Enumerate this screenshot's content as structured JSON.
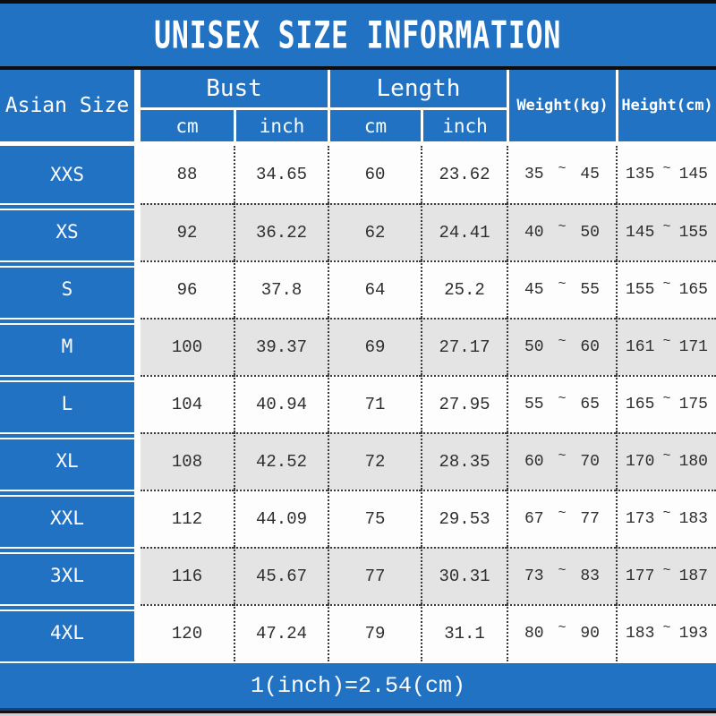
{
  "colors": {
    "header_blue": "#2272c3",
    "row_white": "#fdfdfd",
    "row_gray": "#e5e4e5",
    "data_text": "#2e2e2e",
    "header_text": "#ffffff",
    "line_black": "#0d0d0d"
  },
  "chart_data": {
    "type": "table",
    "title": "UNISEX SIZE INFORMATION",
    "tilde": "~",
    "footnote": "1(inch)=2.54(cm)",
    "header": {
      "asian_size": "Asian Size",
      "bust": "Bust",
      "length": "Length",
      "weight": "Weight(kg)",
      "height": "Height(cm)",
      "sub": [
        "cm",
        "inch",
        "cm",
        "inch"
      ]
    },
    "rows": [
      {
        "size": "XXS",
        "bust_cm": "88",
        "bust_inch": "34.65",
        "length_cm": "60",
        "length_inch": "23.62",
        "weight_min": "35",
        "weight_max": "45",
        "height_min": "135",
        "height_max": "145"
      },
      {
        "size": "XS",
        "bust_cm": "92",
        "bust_inch": "36.22",
        "length_cm": "62",
        "length_inch": "24.41",
        "weight_min": "40",
        "weight_max": "50",
        "height_min": "145",
        "height_max": "155"
      },
      {
        "size": "S",
        "bust_cm": "96",
        "bust_inch": "37.8",
        "length_cm": "64",
        "length_inch": "25.2",
        "weight_min": "45",
        "weight_max": "55",
        "height_min": "155",
        "height_max": "165"
      },
      {
        "size": "M",
        "bust_cm": "100",
        "bust_inch": "39.37",
        "length_cm": "69",
        "length_inch": "27.17",
        "weight_min": "50",
        "weight_max": "60",
        "height_min": "161",
        "height_max": "171"
      },
      {
        "size": "L",
        "bust_cm": "104",
        "bust_inch": "40.94",
        "length_cm": "71",
        "length_inch": "27.95",
        "weight_min": "55",
        "weight_max": "65",
        "height_min": "165",
        "height_max": "175"
      },
      {
        "size": "XL",
        "bust_cm": "108",
        "bust_inch": "42.52",
        "length_cm": "72",
        "length_inch": "28.35",
        "weight_min": "60",
        "weight_max": "70",
        "height_min": "170",
        "height_max": "180"
      },
      {
        "size": "XXL",
        "bust_cm": "112",
        "bust_inch": "44.09",
        "length_cm": "75",
        "length_inch": "29.53",
        "weight_min": "67",
        "weight_max": "77",
        "height_min": "173",
        "height_max": "183"
      },
      {
        "size": "3XL",
        "bust_cm": "116",
        "bust_inch": "45.67",
        "length_cm": "77",
        "length_inch": "30.31",
        "weight_min": "73",
        "weight_max": "83",
        "height_min": "177",
        "height_max": "187"
      },
      {
        "size": "4XL",
        "bust_cm": "120",
        "bust_inch": "47.24",
        "length_cm": "79",
        "length_inch": "31.1",
        "weight_min": "80",
        "weight_max": "90",
        "height_min": "183",
        "height_max": "193"
      }
    ]
  }
}
